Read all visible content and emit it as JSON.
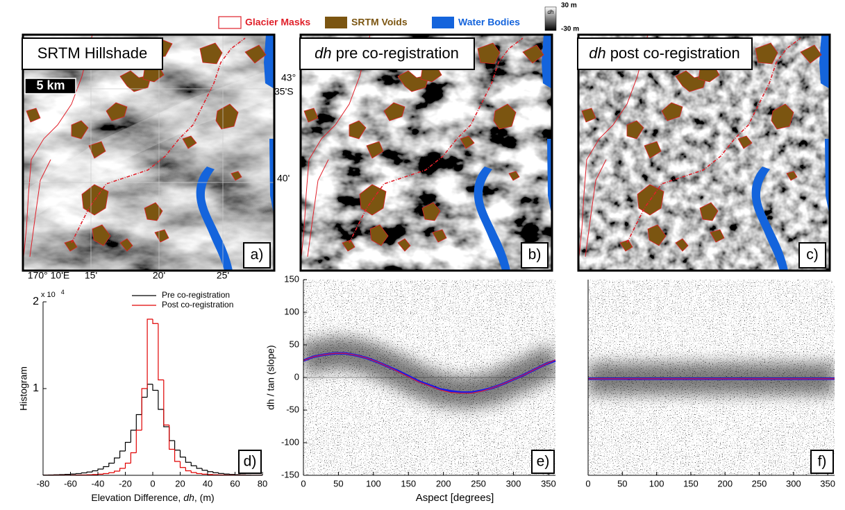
{
  "legend": {
    "items": [
      {
        "label": "Glacier Masks",
        "color": "#e0202a",
        "outline": true
      },
      {
        "label": "SRTM Voids",
        "color": "#7b5511"
      },
      {
        "label": "Water Bodies",
        "color": "#1464dc"
      }
    ],
    "colorbar": {
      "label": "dh",
      "max": "30 m",
      "min": "-30 m"
    }
  },
  "maps": [
    {
      "title": "SRTM Hillshade",
      "panel": "a)",
      "scale_bar": "5 km",
      "lat_labels": [
        "43°",
        "35'S",
        "40'"
      ],
      "lon_labels": [
        "170° 10'E",
        "15'",
        "20'",
        "25'"
      ]
    },
    {
      "title_prefix": "dh",
      "title": "pre co-registration",
      "panel": "b)"
    },
    {
      "title_prefix": "dh",
      "title": "post co-registration",
      "panel": "c)"
    }
  ],
  "chart_data": [
    {
      "type": "histogram",
      "panel": "d)",
      "ylabel": "Histogram",
      "xlabel_parts": [
        "Elevation Difference,",
        "dh",
        ", (m)"
      ],
      "y_multiplier": "x 10",
      "y_multiplier_exp": "4",
      "legend": "upper right",
      "bins": [
        -80,
        -76,
        -72,
        -68,
        -64,
        -60,
        -56,
        -52,
        -48,
        -44,
        -40,
        -36,
        -32,
        -28,
        -24,
        -20,
        -16,
        -12,
        -8,
        -4,
        0,
        4,
        8,
        12,
        16,
        20,
        24,
        28,
        32,
        36,
        40,
        44,
        48,
        52,
        56,
        60,
        64,
        68,
        72,
        76,
        80
      ],
      "series": [
        {
          "name": "Pre co-registration",
          "color": "#000000",
          "values": [
            30,
            40,
            60,
            80,
            110,
            150,
            200,
            280,
            380,
            520,
            720,
            1000,
            1400,
            2000,
            2800,
            3800,
            5200,
            7000,
            9000,
            10500,
            9800,
            7600,
            5600,
            4000,
            2900,
            2100,
            1500,
            1100,
            800,
            580,
            420,
            300,
            210,
            150,
            100,
            70,
            50,
            35,
            25,
            20
          ]
        },
        {
          "name": "Post co-registration",
          "color": "#e00000",
          "values": [
            5,
            5,
            8,
            10,
            15,
            20,
            30,
            40,
            60,
            90,
            130,
            200,
            300,
            480,
            800,
            1400,
            2600,
            5200,
            10000,
            18000,
            17500,
            11000,
            5800,
            3000,
            1600,
            900,
            520,
            320,
            200,
            130,
            90,
            60,
            40,
            28,
            20,
            14,
            10,
            7,
            5,
            4
          ]
        }
      ],
      "xlim": [
        -80,
        80
      ],
      "xticks": [
        -80,
        -60,
        -40,
        -20,
        0,
        20,
        40,
        60,
        80
      ],
      "ylim": [
        0,
        20000
      ],
      "yticks": [
        {
          "value": 10000,
          "label": "1"
        },
        {
          "value": 20000,
          "label": "2"
        }
      ]
    },
    {
      "type": "line",
      "panel": "e)",
      "ylabel": "dh / tan (slope)",
      "xlabel": "Aspect [degrees]",
      "point_cloud": true,
      "reference_line": 0,
      "x": [
        0,
        15,
        30,
        45,
        60,
        75,
        90,
        105,
        120,
        135,
        150,
        165,
        180,
        195,
        210,
        225,
        240,
        255,
        270,
        285,
        300,
        315,
        330,
        345,
        360
      ],
      "series": [
        {
          "color": "#1a1ae6",
          "values": [
            26,
            32,
            35,
            37,
            37,
            34,
            30,
            24,
            17,
            10,
            2,
            -6,
            -12,
            -18,
            -21,
            -23,
            -23,
            -20,
            -16,
            -10,
            -3,
            4,
            12,
            20,
            26
          ]
        },
        {
          "color": "#e0202a",
          "values": [
            26,
            32,
            35,
            37,
            37,
            34,
            30,
            24,
            17,
            9,
            1,
            -7,
            -13,
            -19,
            -23,
            -24,
            -24,
            -21,
            -16,
            -10,
            -3,
            4,
            12,
            20,
            27
          ]
        }
      ],
      "xlim": [
        0,
        360
      ],
      "xticks": [
        0,
        50,
        100,
        150,
        200,
        250,
        300,
        350
      ],
      "ylim": [
        -150,
        150
      ],
      "yticks": [
        -150,
        -100,
        -50,
        0,
        50,
        100,
        150
      ]
    },
    {
      "type": "line",
      "panel": "f)",
      "point_cloud": true,
      "reference_line": 0,
      "x": [
        0,
        360
      ],
      "series": [
        {
          "color": "#1a1ae6",
          "values": [
            -2,
            -2
          ]
        },
        {
          "color": "#e0202a",
          "values": [
            -2,
            -2
          ]
        }
      ],
      "xlim": [
        0,
        360
      ],
      "xticks": [
        0,
        50,
        100,
        150,
        200,
        250,
        300,
        350
      ],
      "ylim": [
        -150,
        150
      ]
    }
  ]
}
